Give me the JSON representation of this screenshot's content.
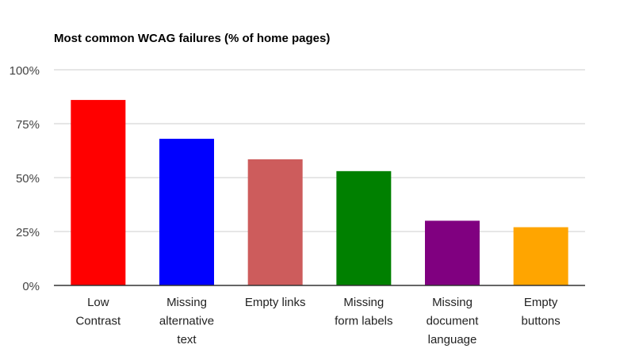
{
  "chart_data": {
    "type": "bar",
    "title": "Most common WCAG failures (% of home pages)",
    "xlabel": "",
    "ylabel": "",
    "categories": [
      [
        "Low",
        "Contrast"
      ],
      [
        "Missing",
        "alternative",
        "text"
      ],
      [
        "Empty links"
      ],
      [
        "Missing",
        "form labels"
      ],
      [
        "Missing",
        "document",
        "language"
      ],
      [
        "Empty",
        "buttons"
      ]
    ],
    "values": [
      86,
      68,
      58.5,
      53,
      30,
      27
    ],
    "colors": [
      "#ff0000",
      "#0000ff",
      "#cd5c5c",
      "#008000",
      "#800080",
      "#ffa500"
    ],
    "yticks": [
      "0%",
      "25%",
      "50%",
      "75%",
      "100%"
    ],
    "ylim": [
      0,
      100
    ],
    "grid": true,
    "legend": "none"
  }
}
